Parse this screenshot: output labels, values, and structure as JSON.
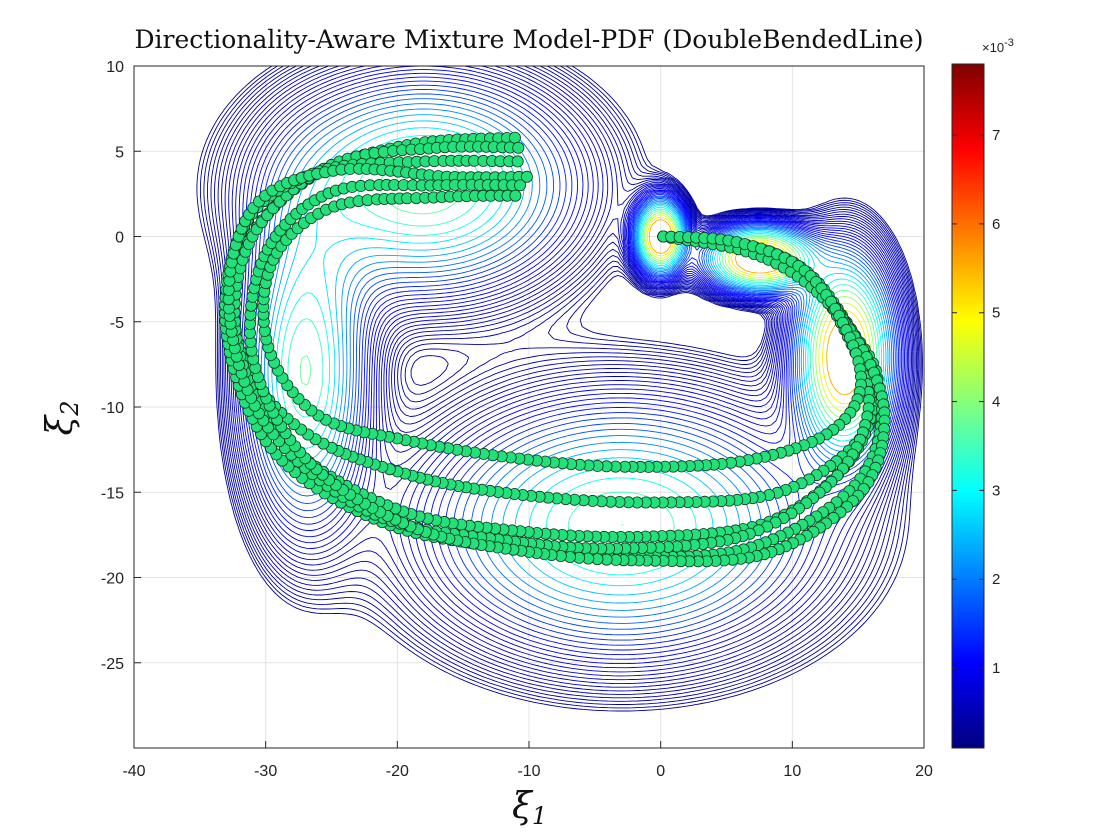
{
  "chart_data": {
    "type": "contour",
    "title": "Directionality-Aware Mixture Model-PDF (DoubleBendedLine)",
    "xlabel": "ξ",
    "xlabel_sub": "1",
    "ylabel": "ξ",
    "ylabel_sub": "2",
    "xlim": [
      -40,
      20
    ],
    "ylim": [
      -30,
      10
    ],
    "x_ticks": [
      -40,
      -30,
      -20,
      -10,
      0,
      10,
      20
    ],
    "y_ticks": [
      -25,
      -20,
      -15,
      -10,
      -5,
      0,
      5,
      10
    ],
    "grid": true,
    "colorbar": {
      "colormap": "jet",
      "range": [
        0.0001,
        0.0078
      ],
      "ticks": [
        1,
        2,
        3,
        4,
        5,
        6,
        7
      ],
      "exponent_label": "×10",
      "exponent_power": "-3"
    },
    "contour_components": [
      {
        "cx": -18,
        "cy": 3,
        "sx": 7,
        "sy": 3.8,
        "w": 0.55
      },
      {
        "cx": -27,
        "cy": -8,
        "sx": 2.8,
        "sy": 5.5,
        "w": 0.5
      },
      {
        "cx": -3,
        "cy": -17,
        "sx": 9,
        "sy": 4.5,
        "w": 0.5
      },
      {
        "cx": 14,
        "cy": -7,
        "sx": 2.2,
        "sy": 3.5,
        "w": 0.9
      },
      {
        "cx": 7.5,
        "cy": -1.3,
        "sx": 2.4,
        "sy": 1.1,
        "w": 1.0
      },
      {
        "cx": 0,
        "cy": 0,
        "sx": 1.1,
        "sy": 1.25,
        "w": 1.0
      }
    ],
    "trajectories": [
      [
        [
          0.2,
          0
        ],
        [
          6,
          -0.4
        ],
        [
          11,
          -2
        ],
        [
          14.5,
          -5.5
        ],
        [
          16.5,
          -8.5
        ],
        [
          15,
          -12
        ],
        [
          9,
          -15
        ],
        [
          0,
          -15.6
        ],
        [
          -10,
          -15.2
        ],
        [
          -19,
          -14
        ],
        [
          -27,
          -11.5
        ],
        [
          -31.8,
          -7
        ],
        [
          -31.8,
          -1
        ],
        [
          -26.5,
          3.5
        ],
        [
          -19,
          5.4
        ],
        [
          -11,
          5.8
        ]
      ],
      [
        [
          0.2,
          0
        ],
        [
          6.5,
          -0.6
        ],
        [
          11.2,
          -2.4
        ],
        [
          14.8,
          -6
        ],
        [
          16.2,
          -9.5
        ],
        [
          14,
          -13.5
        ],
        [
          8,
          -16.8
        ],
        [
          -1,
          -17.6
        ],
        [
          -10.5,
          -17.3
        ],
        [
          -20,
          -16
        ],
        [
          -28.5,
          -12
        ],
        [
          -32.2,
          -6
        ],
        [
          -31,
          0
        ],
        [
          -25,
          4.2
        ],
        [
          -17,
          5.2
        ],
        [
          -10.5,
          5.2
        ]
      ],
      [
        [
          0.2,
          0
        ],
        [
          6.8,
          -0.8
        ],
        [
          11.5,
          -2.8
        ],
        [
          15.2,
          -6.5
        ],
        [
          16.8,
          -10.5
        ],
        [
          14.5,
          -14.8
        ],
        [
          7,
          -18.2
        ],
        [
          -2,
          -18.8
        ],
        [
          -11,
          -18.3
        ],
        [
          -21,
          -16.8
        ],
        [
          -29.5,
          -12.5
        ],
        [
          -33,
          -5.5
        ],
        [
          -31.5,
          0.8
        ],
        [
          -26,
          3.8
        ],
        [
          -18,
          4.4
        ],
        [
          -10.5,
          4.4
        ]
      ],
      [
        [
          0.2,
          0
        ],
        [
          6.2,
          -0.5
        ],
        [
          11,
          -2.2
        ],
        [
          14.3,
          -6
        ],
        [
          15.8,
          -10
        ],
        [
          13.2,
          -14.2
        ],
        [
          6.5,
          -17.5
        ],
        [
          -3,
          -18.3
        ],
        [
          -12,
          -17.8
        ],
        [
          -22,
          -16.2
        ],
        [
          -30,
          -11
        ],
        [
          -32.8,
          -4
        ],
        [
          -30.8,
          1.8
        ],
        [
          -24.5,
          3.9
        ],
        [
          -16,
          3.5
        ],
        [
          -10,
          3.5
        ]
      ],
      [
        [
          0.2,
          0
        ],
        [
          7,
          -1
        ],
        [
          11.8,
          -3.2
        ],
        [
          15.6,
          -7
        ],
        [
          17,
          -11
        ],
        [
          15,
          -15.2
        ],
        [
          8,
          -18.6
        ],
        [
          -1.5,
          -19
        ],
        [
          -10,
          -18.5
        ],
        [
          -19,
          -17
        ],
        [
          -27,
          -13
        ],
        [
          -31,
          -7
        ],
        [
          -30,
          -1
        ],
        [
          -25,
          2.6
        ],
        [
          -17,
          3
        ],
        [
          -10.5,
          3
        ]
      ],
      [
        [
          0.2,
          0
        ],
        [
          5.6,
          -0.3
        ],
        [
          10.6,
          -1.8
        ],
        [
          13.8,
          -5
        ],
        [
          15.2,
          -8.8
        ],
        [
          12.6,
          -11.6
        ],
        [
          6,
          -13.2
        ],
        [
          -3,
          -13.5
        ],
        [
          -11,
          -13
        ],
        [
          -19,
          -12
        ],
        [
          -26,
          -10.5
        ],
        [
          -29.8,
          -6.5
        ],
        [
          -29.5,
          -1.5
        ],
        [
          -25,
          1.7
        ],
        [
          -17,
          2.3
        ],
        [
          -10.5,
          2.4
        ]
      ]
    ]
  }
}
